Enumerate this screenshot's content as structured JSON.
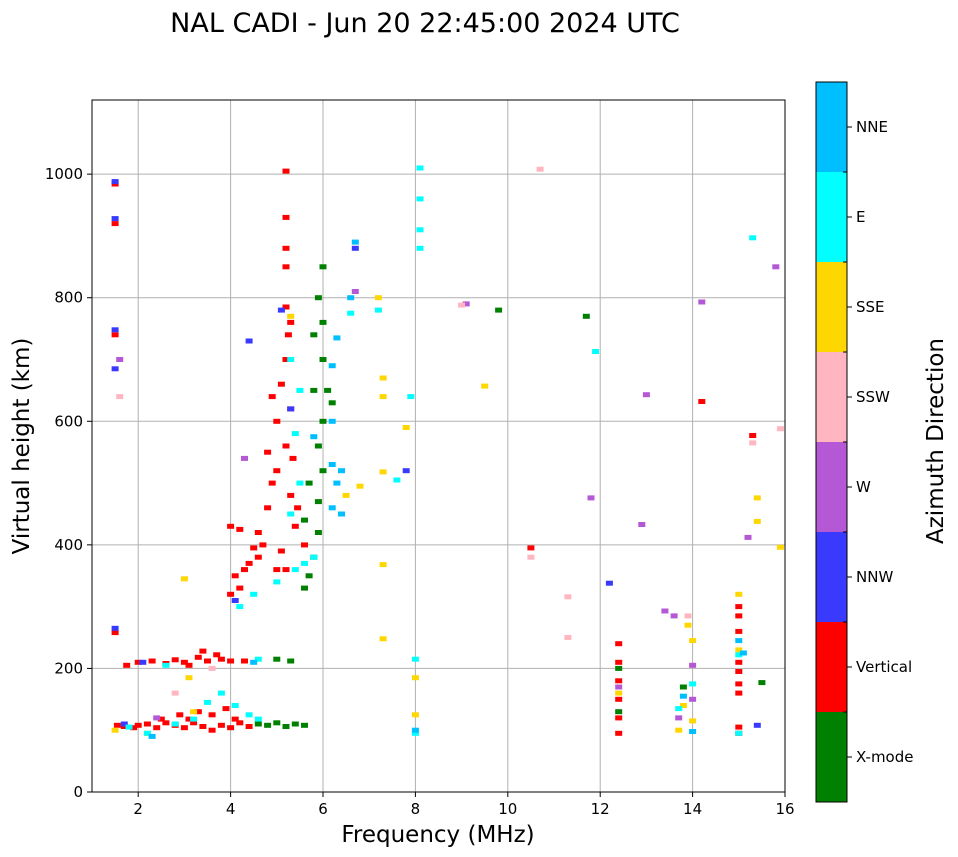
{
  "chart_data": {
    "type": "scatter",
    "title": "NAL CADI - Jun 20 22:45:00 2024 UTC",
    "xlabel": "Frequency (MHz)",
    "ylabel": "Virtual height (km)",
    "xlim": [
      1,
      16
    ],
    "ylim": [
      0,
      1120
    ],
    "xticks": [
      2,
      4,
      6,
      8,
      10,
      12,
      14,
      16
    ],
    "yticks": [
      0,
      200,
      400,
      600,
      800,
      1000
    ],
    "grid": true,
    "colorbar": {
      "label": "Azimuth Direction",
      "categories": [
        {
          "name": "X-mode",
          "color": "#008000"
        },
        {
          "name": "Vertical",
          "color": "#ff0000"
        },
        {
          "name": "NNW",
          "color": "#3a3aff"
        },
        {
          "name": "W",
          "color": "#b558d6"
        },
        {
          "name": "SSW",
          "color": "#ffb6c1"
        },
        {
          "name": "SSE",
          "color": "#ffd700"
        },
        {
          "name": "E",
          "color": "#00ffff"
        },
        {
          "name": "NNE",
          "color": "#00bfff"
        }
      ]
    },
    "series": [
      {
        "name": "Vertical",
        "color": "#ff0000",
        "points": [
          [
            1.5,
            984
          ],
          [
            1.5,
            920
          ],
          [
            1.5,
            740
          ],
          [
            1.5,
            258
          ],
          [
            1.55,
            108
          ],
          [
            1.7,
            106
          ],
          [
            1.9,
            104
          ],
          [
            2.0,
            108
          ],
          [
            2.2,
            110
          ],
          [
            2.4,
            104
          ],
          [
            2.6,
            112
          ],
          [
            2.8,
            108
          ],
          [
            3.0,
            104
          ],
          [
            3.2,
            112
          ],
          [
            3.4,
            106
          ],
          [
            3.6,
            100
          ],
          [
            3.8,
            108
          ],
          [
            4.0,
            104
          ],
          [
            4.2,
            112
          ],
          [
            4.4,
            106
          ],
          [
            3.6,
            125
          ],
          [
            3.9,
            135
          ],
          [
            4.1,
            118
          ],
          [
            3.3,
            130
          ],
          [
            3.1,
            118
          ],
          [
            2.9,
            125
          ],
          [
            2.5,
            118
          ],
          [
            1.75,
            205
          ],
          [
            2.0,
            210
          ],
          [
            2.3,
            212
          ],
          [
            2.6,
            208
          ],
          [
            2.8,
            214
          ],
          [
            3.0,
            210
          ],
          [
            3.3,
            218
          ],
          [
            3.5,
            212
          ],
          [
            3.8,
            215
          ],
          [
            4.0,
            212
          ],
          [
            4.3,
            212
          ],
          [
            3.4,
            228
          ],
          [
            3.7,
            222
          ],
          [
            3.1,
            205
          ],
          [
            4.0,
            320
          ],
          [
            4.2,
            330
          ],
          [
            4.1,
            350
          ],
          [
            4.3,
            360
          ],
          [
            4.0,
            430
          ],
          [
            4.2,
            425
          ],
          [
            4.4,
            370
          ],
          [
            4.5,
            395
          ],
          [
            4.6,
            380
          ],
          [
            4.7,
            400
          ],
          [
            4.8,
            460
          ],
          [
            4.9,
            500
          ],
          [
            4.8,
            550
          ],
          [
            5.0,
            520
          ],
          [
            5.0,
            600
          ],
          [
            4.9,
            640
          ],
          [
            5.1,
            660
          ],
          [
            5.2,
            700
          ],
          [
            5.3,
            620
          ],
          [
            5.2,
            560
          ],
          [
            5.3,
            480
          ],
          [
            5.4,
            430
          ],
          [
            5.1,
            390
          ],
          [
            5.0,
            360
          ],
          [
            4.6,
            420
          ],
          [
            5.2,
            1005
          ],
          [
            5.2,
            930
          ],
          [
            5.2,
            880
          ],
          [
            5.2,
            850
          ],
          [
            5.2,
            785
          ],
          [
            5.3,
            760
          ],
          [
            5.25,
            740
          ],
          [
            5.35,
            540
          ],
          [
            5.45,
            460
          ],
          [
            5.6,
            400
          ],
          [
            5.2,
            360
          ],
          [
            10.5,
            395
          ],
          [
            12.4,
            240
          ],
          [
            12.4,
            210
          ],
          [
            12.4,
            180
          ],
          [
            12.4,
            150
          ],
          [
            12.4,
            120
          ],
          [
            12.4,
            95
          ],
          [
            14.2,
            632
          ],
          [
            15.0,
            300
          ],
          [
            15.0,
            285
          ],
          [
            15.0,
            260
          ],
          [
            15.0,
            210
          ],
          [
            15.0,
            195
          ],
          [
            15.0,
            175
          ],
          [
            15.0,
            160
          ],
          [
            15.0,
            105
          ],
          [
            15.0,
            95
          ],
          [
            15.3,
            577
          ]
        ]
      },
      {
        "name": "X-mode",
        "color": "#008000",
        "points": [
          [
            4.6,
            110
          ],
          [
            4.8,
            108
          ],
          [
            5.0,
            112
          ],
          [
            5.2,
            106
          ],
          [
            5.4,
            110
          ],
          [
            5.6,
            108
          ],
          [
            5.0,
            215
          ],
          [
            5.3,
            212
          ],
          [
            5.6,
            330
          ],
          [
            5.7,
            350
          ],
          [
            5.8,
            380
          ],
          [
            5.9,
            420
          ],
          [
            5.9,
            470
          ],
          [
            6.0,
            520
          ],
          [
            5.9,
            560
          ],
          [
            6.0,
            600
          ],
          [
            6.1,
            650
          ],
          [
            6.0,
            700
          ],
          [
            6.0,
            760
          ],
          [
            5.9,
            800
          ],
          [
            6.0,
            850
          ],
          [
            5.8,
            650
          ],
          [
            5.7,
            500
          ],
          [
            5.6,
            440
          ],
          [
            6.2,
            630
          ],
          [
            5.8,
            740
          ],
          [
            9.8,
            780
          ],
          [
            11.7,
            770
          ],
          [
            12.4,
            200
          ],
          [
            12.4,
            130
          ],
          [
            13.8,
            170
          ],
          [
            15.5,
            177
          ]
        ]
      },
      {
        "name": "NNW",
        "color": "#3a3aff",
        "points": [
          [
            1.5,
            988
          ],
          [
            1.5,
            928
          ],
          [
            1.5,
            748
          ],
          [
            1.5,
            685
          ],
          [
            1.5,
            265
          ],
          [
            1.7,
            110
          ],
          [
            4.1,
            310
          ],
          [
            4.4,
            730
          ],
          [
            5.1,
            780
          ],
          [
            5.3,
            620
          ],
          [
            6.7,
            880
          ],
          [
            7.8,
            520
          ],
          [
            12.2,
            338
          ],
          [
            15.4,
            108
          ],
          [
            2.1,
            210
          ]
        ]
      },
      {
        "name": "W",
        "color": "#b558d6",
        "points": [
          [
            1.6,
            700
          ],
          [
            4.3,
            540
          ],
          [
            6.7,
            810
          ],
          [
            9.1,
            790
          ],
          [
            11.8,
            476
          ],
          [
            12.9,
            433
          ],
          [
            13.0,
            643
          ],
          [
            13.4,
            293
          ],
          [
            13.6,
            285
          ],
          [
            14.0,
            205
          ],
          [
            14.2,
            793
          ],
          [
            15.2,
            412
          ],
          [
            15.8,
            850
          ],
          [
            12.4,
            170
          ],
          [
            13.7,
            120
          ],
          [
            14.0,
            150
          ],
          [
            2.4,
            120
          ]
        ]
      },
      {
        "name": "SSW",
        "color": "#ffb6c1",
        "points": [
          [
            1.6,
            640
          ],
          [
            9.0,
            788
          ],
          [
            10.7,
            1008
          ],
          [
            10.5,
            380
          ],
          [
            11.3,
            316
          ],
          [
            11.3,
            250
          ],
          [
            13.9,
            285
          ],
          [
            15.3,
            565
          ],
          [
            15.9,
            588
          ],
          [
            2.8,
            160
          ],
          [
            3.6,
            200
          ]
        ]
      },
      {
        "name": "SSE",
        "color": "#ffd700",
        "points": [
          [
            1.5,
            100
          ],
          [
            3.0,
            345
          ],
          [
            3.1,
            185
          ],
          [
            5.3,
            770
          ],
          [
            6.5,
            480
          ],
          [
            6.8,
            495
          ],
          [
            7.2,
            800
          ],
          [
            7.3,
            670
          ],
          [
            7.3,
            640
          ],
          [
            7.3,
            518
          ],
          [
            7.3,
            368
          ],
          [
            7.3,
            248
          ],
          [
            7.8,
            590
          ],
          [
            8.0,
            185
          ],
          [
            8.0,
            125
          ],
          [
            9.5,
            657
          ],
          [
            13.7,
            100
          ],
          [
            13.8,
            140
          ],
          [
            13.9,
            270
          ],
          [
            14.0,
            245
          ],
          [
            14.0,
            115
          ],
          [
            15.0,
            320
          ],
          [
            15.0,
            230
          ],
          [
            15.4,
            476
          ],
          [
            15.4,
            438
          ],
          [
            15.9,
            396
          ],
          [
            12.4,
            160
          ],
          [
            3.2,
            130
          ],
          [
            2.2,
            95
          ]
        ]
      },
      {
        "name": "E",
        "color": "#00ffff",
        "points": [
          [
            1.8,
            105
          ],
          [
            2.2,
            95
          ],
          [
            2.8,
            110
          ],
          [
            3.2,
            118
          ],
          [
            3.5,
            145
          ],
          [
            3.8,
            160
          ],
          [
            4.1,
            140
          ],
          [
            4.4,
            125
          ],
          [
            4.6,
            118
          ],
          [
            4.2,
            300
          ],
          [
            4.5,
            320
          ],
          [
            5.0,
            340
          ],
          [
            5.4,
            360
          ],
          [
            5.6,
            370
          ],
          [
            5.8,
            380
          ],
          [
            5.3,
            450
          ],
          [
            5.5,
            500
          ],
          [
            5.4,
            580
          ],
          [
            5.5,
            650
          ],
          [
            5.3,
            700
          ],
          [
            6.6,
            775
          ],
          [
            7.2,
            780
          ],
          [
            7.6,
            505
          ],
          [
            7.9,
            640
          ],
          [
            8.0,
            215
          ],
          [
            8.0,
            95
          ],
          [
            8.1,
            1010
          ],
          [
            8.1,
            960
          ],
          [
            8.1,
            910
          ],
          [
            8.1,
            880
          ],
          [
            11.9,
            713
          ],
          [
            15.3,
            897
          ],
          [
            14.0,
            175
          ],
          [
            13.7,
            135
          ],
          [
            15.0,
            222
          ],
          [
            15.0,
            95
          ],
          [
            2.6,
            205
          ],
          [
            4.6,
            215
          ]
        ]
      },
      {
        "name": "NNE",
        "color": "#00bfff",
        "points": [
          [
            2.3,
            90
          ],
          [
            4.5,
            210
          ],
          [
            5.8,
            575
          ],
          [
            6.2,
            600
          ],
          [
            6.2,
            530
          ],
          [
            6.3,
            500
          ],
          [
            6.2,
            460
          ],
          [
            6.4,
            450
          ],
          [
            6.4,
            520
          ],
          [
            6.2,
            690
          ],
          [
            6.3,
            735
          ],
          [
            6.7,
            890
          ],
          [
            6.6,
            800
          ],
          [
            8.0,
            100
          ],
          [
            13.8,
            155
          ],
          [
            15.0,
            245
          ],
          [
            15.1,
            225
          ],
          [
            14.0,
            98
          ]
        ]
      }
    ]
  }
}
